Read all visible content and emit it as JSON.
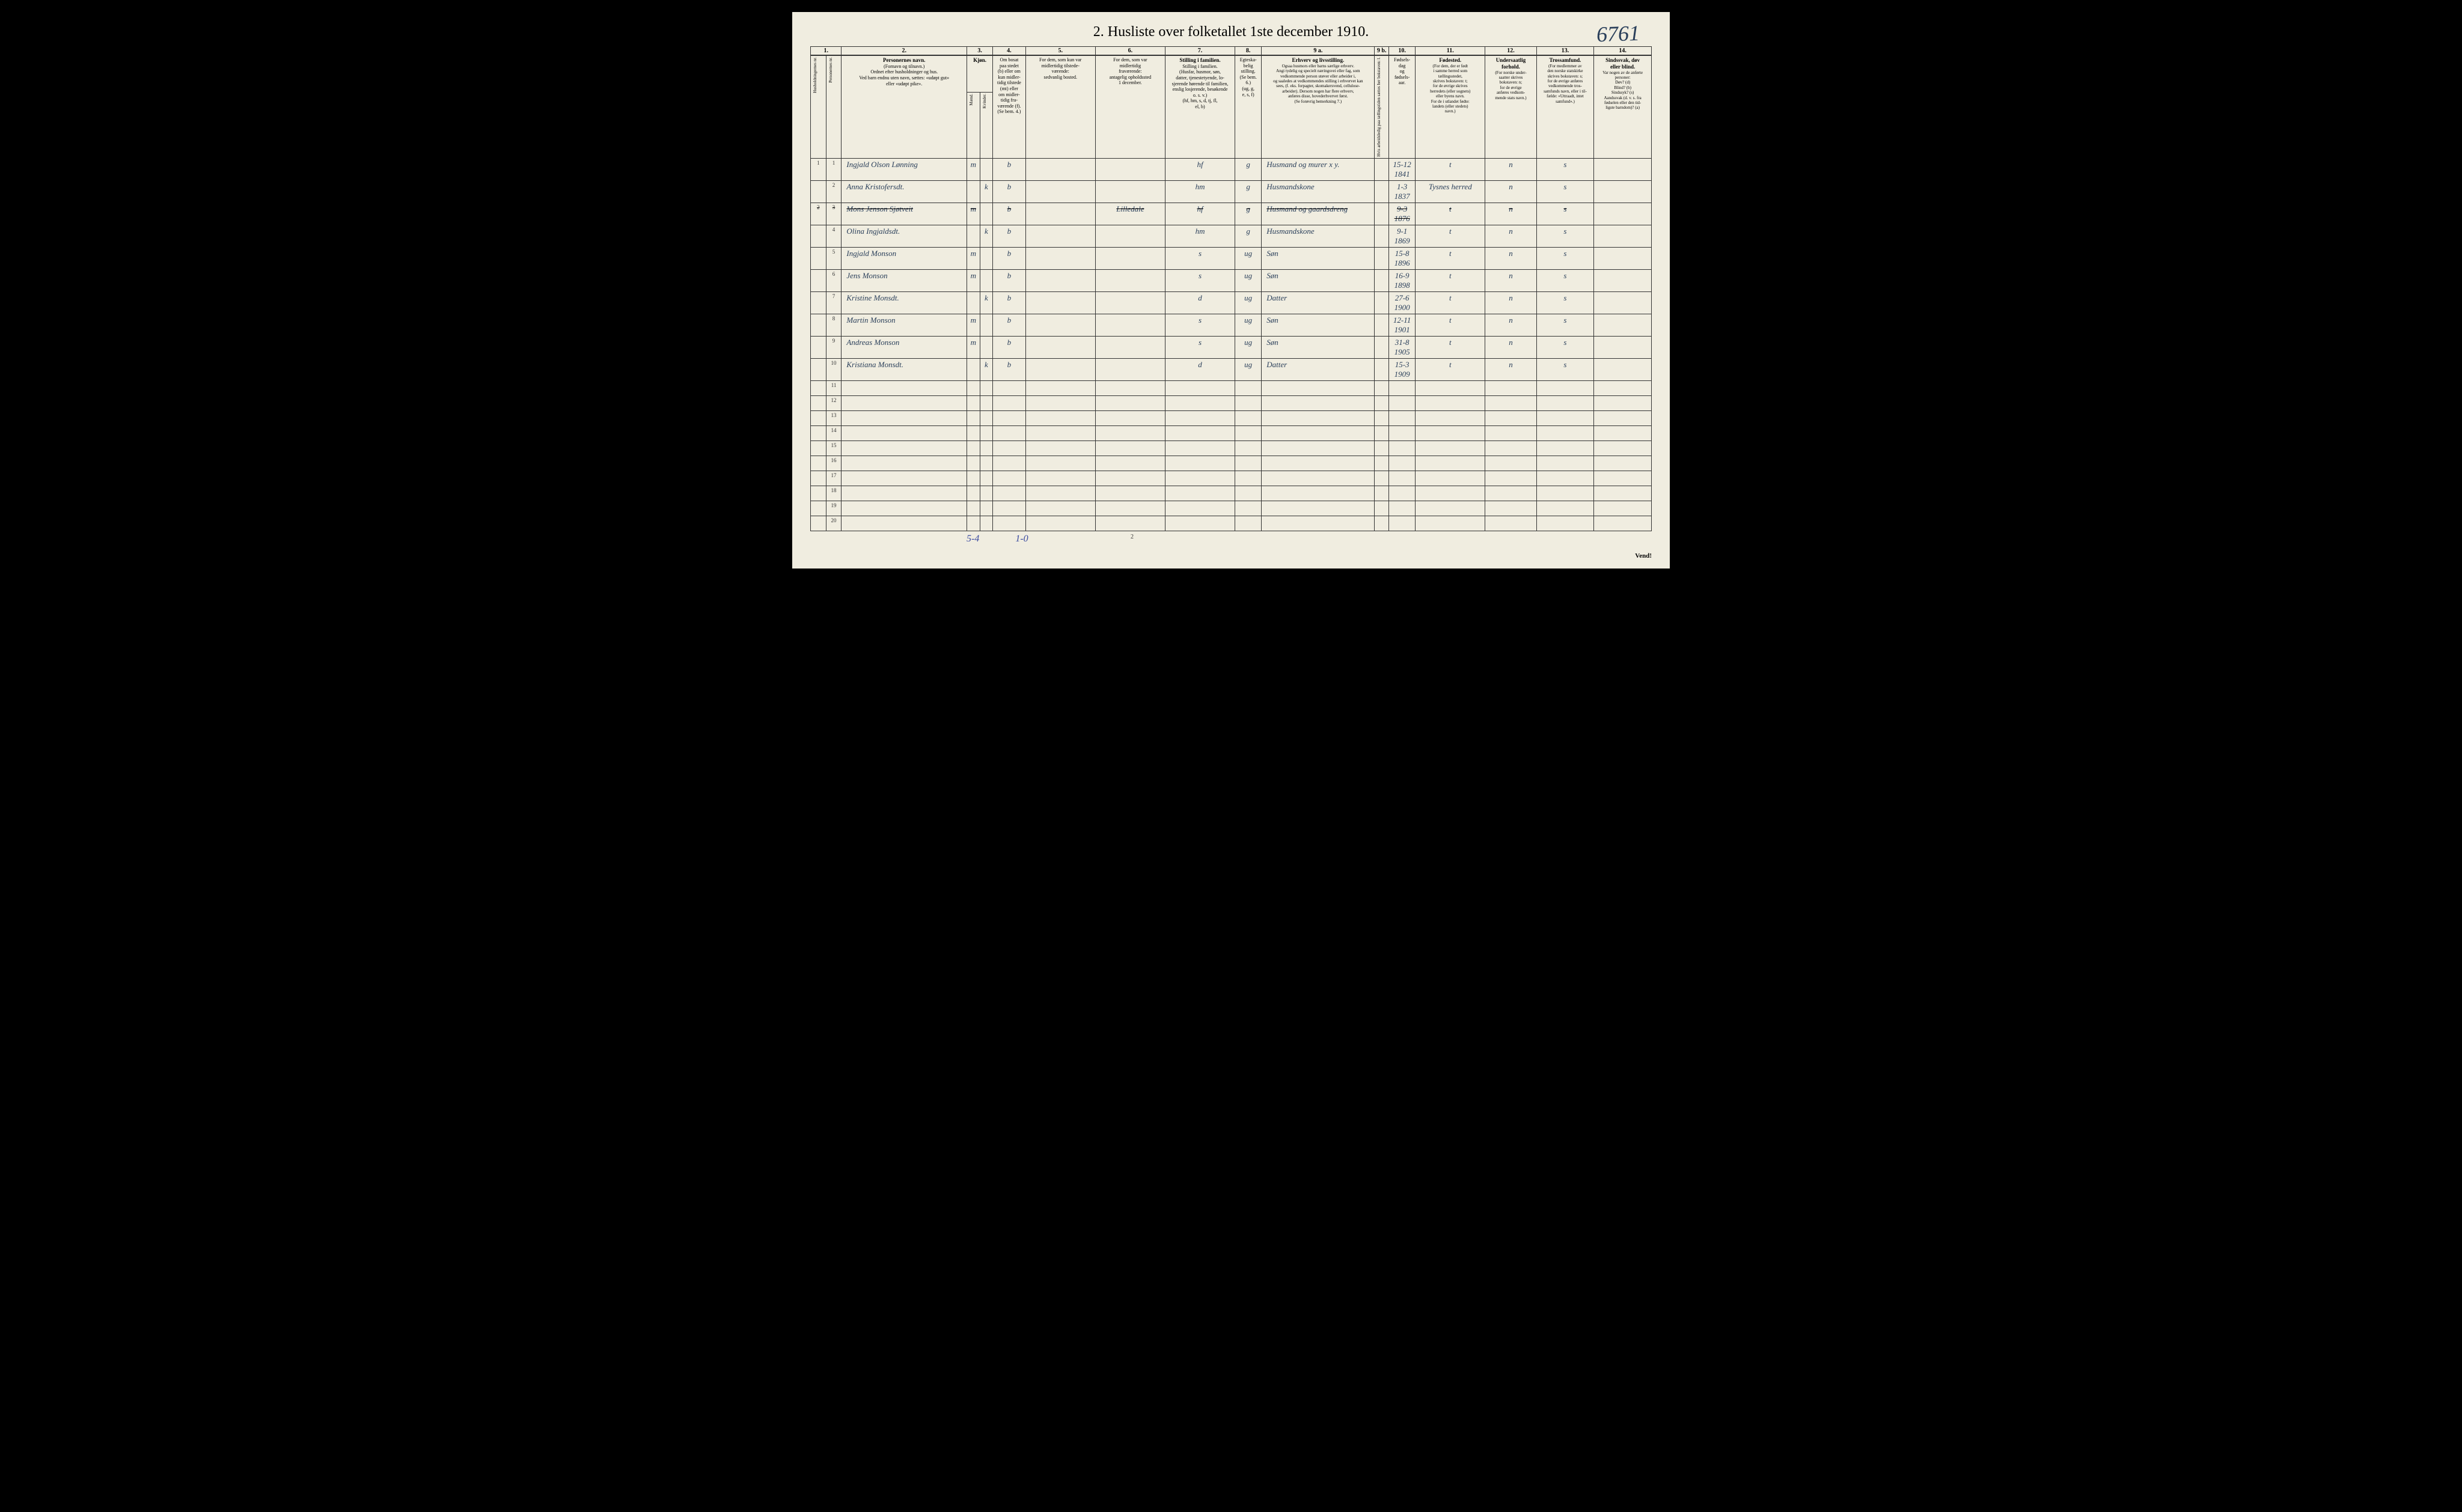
{
  "title": "2.  Husliste over folketallet 1ste december 1910.",
  "handwrittenNumber": "6761",
  "pageNumber": "2",
  "vend": "Vend!",
  "footerLeft": "5-4",
  "footerMid": "1-0",
  "headers": {
    "col1a": "Husholdningernes nr.",
    "col1b": "Personernes nr.",
    "col2_title": "Personernes navn.",
    "col2_sub": "(Fornavn og tilnavn.)\nOrdnet efter husholdninger og hus.\nVed barn endnu uten navn, sættes: «udøpt gut»\neller «udøpt pike».",
    "col3_title": "Kjøn.",
    "col3_m": "Mænd.",
    "col3_k": "Kvinder.",
    "col3_mk": "m.  k.",
    "col4": "Om bosat\npaa stedet\n(b) eller om\nkun midler-\ntidig tilstede\n(mt) eller\nom midler-\ntidig fra-\nværende (f).\n(Se bem. 4.)",
    "col5": "For dem, som kun var\nmidlertidig tilstede-\nværende:\nsedvanlig bosted.",
    "col6": "For dem, som var\nmidlertidig\nfraværende:\nantagelig opholdssted\n1 december.",
    "col7": "Stilling i familien.\n(Husfar, husmor, søn,\ndatter, tjenestetyende, lo-\nsjerende hørende til familien,\nenslig losjerende, besøkende\no. s. v.)\n(hf, hm, s, d, tj, fl,\nel, b)",
    "col8": "Egteska-\nbelig\nstilling.\n(Se bem. 6.)\n(ug, g,\ne, s, f)",
    "col9a_title": "Erhverv og livsstilling.",
    "col9a_sub": "Ogsaa husmors eller barns særlige erhverv.\nAngi tydelig og specielt næringsvei eller fag, som\nvedkommende person utøver eller arbeider i,\nog saaledes at vedkommendes stilling i erhvervet kan\nsees, (f. eks. forpagter, skomakersvend, cellulose-\narbeider). Dersom nogen har flere erhverv,\nanføres disse, hovederhvervet først.\n(Se forøvrig bemerkning 7.)",
    "col9b": "Hvis arbeidsledig\npaa tællingstiden sættes\nher bokstaven: l.",
    "col10": "Fødsels-\ndag\nog\nfødsels-\naar.",
    "col11_title": "Fødested.",
    "col11_sub": "(For dem, der er født\ni samme herred som\ntællingsstedet,\nskrives bokstaven: t;\nfor de øvrige skrives\nherredets (eller sognets)\neller byens navn.\nFor de i utlandet fødte:\nlandets (eller stedets)\nnavn.)",
    "col12_title": "Undersaatlig\nforhold.",
    "col12_sub": "(For norske under-\nsaatter skrives\nbokstaven: n;\nfor de øvrige\nanføres vedkom-\nmende stats navn.)",
    "col13_title": "Trossamfund.",
    "col13_sub": "(For medlemmer av\nden norske statskirke\nskrives bokstaven: s;\nfor de øvrige anføres\nvedkommende tros-\nsamfunds navn, eller i til-\nfælde: «Uttraadt, intet\nsamfund».)",
    "col14_title": "Sindssvak, døv\neller blind.",
    "col14_sub": "Var nogen av de anførte\npersoner:\nDøv?        (d)\nBlind?       (b)\nSindssyk?  (s)\nAandssvak (d. v. s. fra\nfødselen eller den tid-\nligste barndom)?  (a)"
  },
  "colNums": [
    "1.",
    "2.",
    "3.",
    "4.",
    "5.",
    "6.",
    "7.",
    "8.",
    "9 a.",
    "9 b.",
    "10.",
    "11.",
    "12.",
    "13.",
    "14."
  ],
  "rows": [
    {
      "hh": "1",
      "pn": "1",
      "name": "Ingjald Olson Lønning",
      "sex": "m",
      "b": "b",
      "c5": "",
      "c6": "",
      "c7": "hf",
      "c8": "g",
      "c9a": "Husmand og murer    x y.",
      "c9b": "",
      "c10": "15-12\n1841",
      "c11": "t",
      "c12": "n",
      "c13": "s",
      "c14": ""
    },
    {
      "hh": "",
      "pn": "2",
      "name": "Anna Kristofersdt.",
      "sex": "k",
      "b": "b",
      "c5": "",
      "c6": "",
      "c7": "hm",
      "c8": "g",
      "c9a": "Husmandskone",
      "c9b": "",
      "c10": "1-3\n1837",
      "c11": "Tysnes herred",
      "c12": "n",
      "c13": "s",
      "c14": ""
    },
    {
      "hh": "2",
      "pn": "3",
      "name": "Mons Jenson Sjøtveit",
      "sex": "m",
      "b": "b",
      "c5": "",
      "c6": "Lilledale",
      "c7": "hf",
      "c8": "g",
      "c9a": "Husmand og gaardsdreng",
      "c9b": "",
      "c10": "9-3\n1876",
      "c11": "t",
      "c12": "n",
      "c13": "s",
      "c14": "",
      "struck": true
    },
    {
      "hh": "",
      "pn": "4",
      "name": "Olina Ingjaldsdt.",
      "sex": "k",
      "b": "b",
      "c5": "",
      "c6": "",
      "c7": "hm",
      "c8": "g",
      "c9a": "Husmandskone",
      "c9b": "",
      "c10": "9-1\n1869",
      "c11": "t",
      "c12": "n",
      "c13": "s",
      "c14": ""
    },
    {
      "hh": "",
      "pn": "5",
      "name": "Ingjald Monson",
      "sex": "m",
      "b": "b",
      "c5": "",
      "c6": "",
      "c7": "s",
      "c8": "ug",
      "c9a": "Søn",
      "c9b": "",
      "c10": "15-8\n1896",
      "c11": "t",
      "c12": "n",
      "c13": "s",
      "c14": ""
    },
    {
      "hh": "",
      "pn": "6",
      "name": "Jens Monson",
      "sex": "m",
      "b": "b",
      "c5": "",
      "c6": "",
      "c7": "s",
      "c8": "ug",
      "c9a": "Søn",
      "c9b": "",
      "c10": "16-9\n1898",
      "c11": "t",
      "c12": "n",
      "c13": "s",
      "c14": ""
    },
    {
      "hh": "",
      "pn": "7",
      "name": "Kristine Monsdt.",
      "sex": "k",
      "b": "b",
      "c5": "",
      "c6": "",
      "c7": "d",
      "c8": "ug",
      "c9a": "Datter",
      "c9b": "",
      "c10": "27-6\n1900",
      "c11": "t",
      "c12": "n",
      "c13": "s",
      "c14": ""
    },
    {
      "hh": "",
      "pn": "8",
      "name": "Martin Monson",
      "sex": "m",
      "b": "b",
      "c5": "",
      "c6": "",
      "c7": "s",
      "c8": "ug",
      "c9a": "Søn",
      "c9b": "",
      "c10": "12-11\n1901",
      "c11": "t",
      "c12": "n",
      "c13": "s",
      "c14": ""
    },
    {
      "hh": "",
      "pn": "9",
      "name": "Andreas Monson",
      "sex": "m",
      "b": "b",
      "c5": "",
      "c6": "",
      "c7": "s",
      "c8": "ug",
      "c9a": "Søn",
      "c9b": "",
      "c10": "31-8\n1905",
      "c11": "t",
      "c12": "n",
      "c13": "s",
      "c14": ""
    },
    {
      "hh": "",
      "pn": "10",
      "name": "Kristiana Monsdt.",
      "sex": "k",
      "b": "b",
      "c5": "",
      "c6": "",
      "c7": "d",
      "c8": "ug",
      "c9a": "Datter",
      "c9b": "",
      "c10": "15-3\n1909",
      "c11": "t",
      "c12": "n",
      "c13": "s",
      "c14": ""
    },
    {
      "pn": "11"
    },
    {
      "pn": "12"
    },
    {
      "pn": "13"
    },
    {
      "pn": "14"
    },
    {
      "pn": "15"
    },
    {
      "pn": "16"
    },
    {
      "pn": "17"
    },
    {
      "pn": "18"
    },
    {
      "pn": "19"
    },
    {
      "pn": "20"
    }
  ],
  "styling": {
    "pageBg": "#f0ede0",
    "lineColor": "#333333",
    "inkColor": "#2a3f5a",
    "blueInk": "#3a4aa0",
    "titleSize": 24,
    "headerSize": 8,
    "cellSize": 13
  }
}
